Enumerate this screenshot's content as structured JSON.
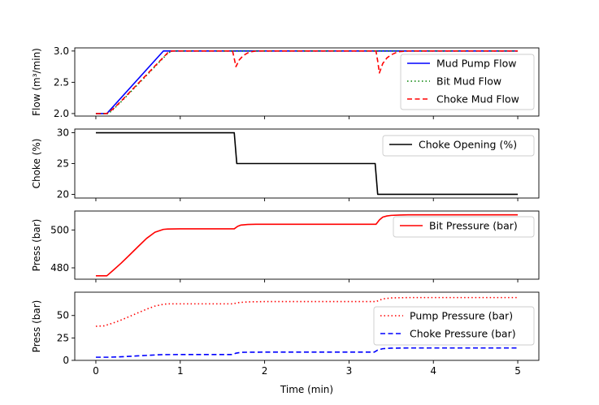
{
  "chart_data": [
    {
      "type": "line",
      "ylabel": "Flow (m³/min)",
      "xlim": [
        -0.25,
        5.25
      ],
      "ylim": [
        1.96,
        3.05
      ],
      "xticks": [
        0,
        1,
        2,
        3,
        4,
        5
      ],
      "yticks": [
        2.0,
        2.5,
        3.0
      ],
      "ytick_labels": [
        "2.0",
        "2.5",
        "3.0"
      ],
      "legend_position": "lower right",
      "series": [
        {
          "name": "Mud Pump Flow",
          "color": "#0000ff",
          "style": "solid",
          "x": [
            0,
            0.13,
            0.8,
            5
          ],
          "y": [
            2.0,
            2.0,
            3.0,
            3.0
          ]
        },
        {
          "name": "Bit Mud Flow",
          "color": "#008000",
          "style": "dotted",
          "x": [
            0,
            0.15,
            0.2,
            0.3,
            0.4,
            0.5,
            0.6,
            0.7,
            0.8,
            0.85,
            0.9,
            5
          ],
          "y": [
            2.0,
            2.0,
            2.06,
            2.19,
            2.33,
            2.47,
            2.61,
            2.75,
            2.89,
            2.96,
            3.0,
            3.0
          ]
        },
        {
          "name": "Choke Mud Flow",
          "color": "#ff0000",
          "style": "dashed",
          "x": [
            0,
            0.13,
            0.2,
            0.3,
            0.4,
            0.5,
            0.6,
            0.7,
            0.8,
            0.85,
            0.9,
            1.62,
            1.64,
            1.66,
            1.7,
            1.75,
            1.8,
            1.85,
            1.9,
            2.0,
            3.32,
            3.34,
            3.36,
            3.4,
            3.45,
            3.5,
            3.55,
            3.6,
            3.7,
            5
          ],
          "y": [
            2.0,
            2.0,
            2.07,
            2.2,
            2.34,
            2.48,
            2.62,
            2.76,
            2.9,
            2.97,
            3.0,
            3.0,
            2.88,
            2.75,
            2.86,
            2.93,
            2.97,
            2.99,
            3.0,
            3.0,
            3.0,
            2.84,
            2.65,
            2.8,
            2.89,
            2.94,
            2.97,
            2.99,
            3.0,
            3.0
          ]
        }
      ]
    },
    {
      "type": "line",
      "ylabel": "Choke (%)",
      "xlim": [
        -0.25,
        5.25
      ],
      "ylim": [
        19.4,
        30.6
      ],
      "xticks": [
        0,
        1,
        2,
        3,
        4,
        5
      ],
      "yticks": [
        20,
        25,
        30
      ],
      "ytick_labels": [
        "20",
        "25",
        "30"
      ],
      "legend_position": "upper right",
      "series": [
        {
          "name": "Choke Opening (%)",
          "color": "#000000",
          "style": "solid",
          "x": [
            0,
            1.64,
            1.67,
            3.31,
            3.34,
            5
          ],
          "y": [
            30,
            30,
            25,
            25,
            20,
            20
          ]
        }
      ]
    },
    {
      "type": "line",
      "ylabel": "Press (bar)",
      "xlim": [
        -0.25,
        5.25
      ],
      "ylim": [
        474,
        510
      ],
      "xticks": [
        0,
        1,
        2,
        3,
        4,
        5
      ],
      "yticks": [
        480,
        500
      ],
      "ytick_labels": [
        "480",
        "500"
      ],
      "legend_position": "upper right",
      "series": [
        {
          "name": "Bit Pressure (bar)",
          "color": "#ff0000",
          "style": "solid",
          "x": [
            0,
            0.13,
            0.2,
            0.3,
            0.4,
            0.5,
            0.6,
            0.7,
            0.8,
            0.85,
            1.0,
            1.64,
            1.68,
            1.72,
            1.8,
            1.9,
            2.0,
            3.32,
            3.36,
            3.4,
            3.45,
            3.5,
            3.6,
            3.7,
            5
          ],
          "y": [
            475.8,
            475.8,
            478.5,
            482.5,
            486.8,
            491.2,
            495.5,
            498.8,
            500.3,
            500.5,
            500.6,
            500.6,
            501.9,
            502.6,
            502.9,
            503.0,
            503.0,
            503.0,
            505.3,
            506.8,
            507.4,
            507.7,
            507.9,
            508.0,
            508.0
          ]
        }
      ]
    },
    {
      "type": "line",
      "ylabel": "Press (bar)",
      "xlabel": "Time (min)",
      "xlim": [
        -0.25,
        5.25
      ],
      "ylim": [
        0,
        76
      ],
      "xticks": [
        0,
        1,
        2,
        3,
        4,
        5
      ],
      "xtick_labels": [
        "0",
        "1",
        "2",
        "3",
        "4",
        "5"
      ],
      "yticks": [
        0,
        25,
        50
      ],
      "ytick_labels": [
        "0",
        "25",
        "50"
      ],
      "legend_position": "upper right",
      "series": [
        {
          "name": "Pump Pressure (bar)",
          "color": "#ff0000",
          "style": "dotted",
          "x": [
            0,
            0.1,
            0.2,
            0.3,
            0.4,
            0.5,
            0.6,
            0.7,
            0.8,
            0.85,
            1.0,
            1.62,
            1.7,
            1.8,
            2.0,
            3.32,
            3.4,
            3.5,
            3.7,
            5
          ],
          "y": [
            38,
            38.5,
            41.5,
            45,
            49,
            53,
            57,
            60.5,
            62.5,
            63,
            63,
            63,
            64.5,
            65.2,
            65.5,
            65.5,
            68.5,
            69.6,
            70,
            70
          ]
        },
        {
          "name": "Choke Pressure (bar)",
          "color": "#0000ff",
          "style": "dashed",
          "x": [
            0,
            0.15,
            0.3,
            0.5,
            0.7,
            0.8,
            1.0,
            1.62,
            1.66,
            1.72,
            2.0,
            3.3,
            3.34,
            3.4,
            3.5,
            3.7,
            5
          ],
          "y": [
            3.5,
            3.5,
            4.0,
            5.0,
            6.0,
            6.4,
            6.5,
            6.5,
            8.0,
            9.0,
            9.2,
            9.2,
            11.5,
            13.0,
            13.6,
            13.8,
            13.8
          ]
        }
      ]
    }
  ]
}
